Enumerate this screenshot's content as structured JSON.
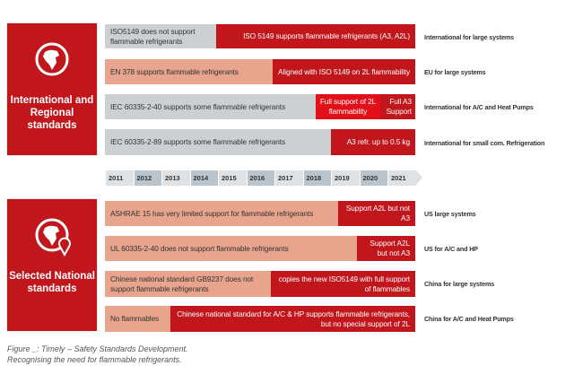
{
  "panels": [
    {
      "title": "International and Regional standards",
      "icon": "globe-icon"
    },
    {
      "title": "Selected National standards",
      "icon": "globe-pin-icon"
    }
  ],
  "international_rows": [
    {
      "segments": [
        "ISO5149 does not support flammable refrigerants",
        "ISO 5149 supports flammable refrigerants (A3, A2L)"
      ],
      "label": "International for large systems"
    },
    {
      "segments": [
        "EN 378 supports flammable refrigerants",
        "Aligned with ISO 5149 on 2L flammability"
      ],
      "label": "EU for large systems"
    },
    {
      "segments": [
        "IEC 60335-2-40 supports some flammable refrigerants",
        "Full support of 2L flammability",
        "Full A3 Support"
      ],
      "label": "International for A/C and Heat Pumps"
    },
    {
      "segments": [
        "IEC 60335-2-89 supports some flammable refrigerants",
        "A3 refr. up to 0.5 kg"
      ],
      "label": "International for small com. Refrigeration"
    }
  ],
  "timeline": [
    "2011",
    "2012",
    "2013",
    "2014",
    "2015",
    "2016",
    "2017",
    "2018",
    "2019",
    "2020",
    "2021"
  ],
  "national_rows": [
    {
      "segments": [
        "ASHRAE 15 has very limited support for flammable refrigerants",
        "Support A2L but not A3"
      ],
      "label": "US large systems"
    },
    {
      "segments": [
        "UL 60335-2-40 does not support flammable refrigerants",
        "Support A2L but not A3"
      ],
      "label": "US for A/C and HP"
    },
    {
      "segments": [
        "Chinese national standard GB9237 does not support flammable refrigerants",
        "copies the new ISO5149 with full support of flammables"
      ],
      "label": "China for large systems"
    },
    {
      "segments": [
        "No flammables",
        "Chinese national standard for A/C & HP supports flammable refrigerants, but no special support of 2L"
      ],
      "label": "China for A/C and Heat Pumps"
    }
  ],
  "caption": {
    "line1": "Figure    _: Timely – Safety Standards Development.",
    "line2": "Recognising the need for flammable refrigerants."
  },
  "colors": {
    "red": "#c0161c",
    "bright_red": "#e3101a",
    "gray": "#cdd0d3",
    "salmon": "#e8a48d"
  }
}
